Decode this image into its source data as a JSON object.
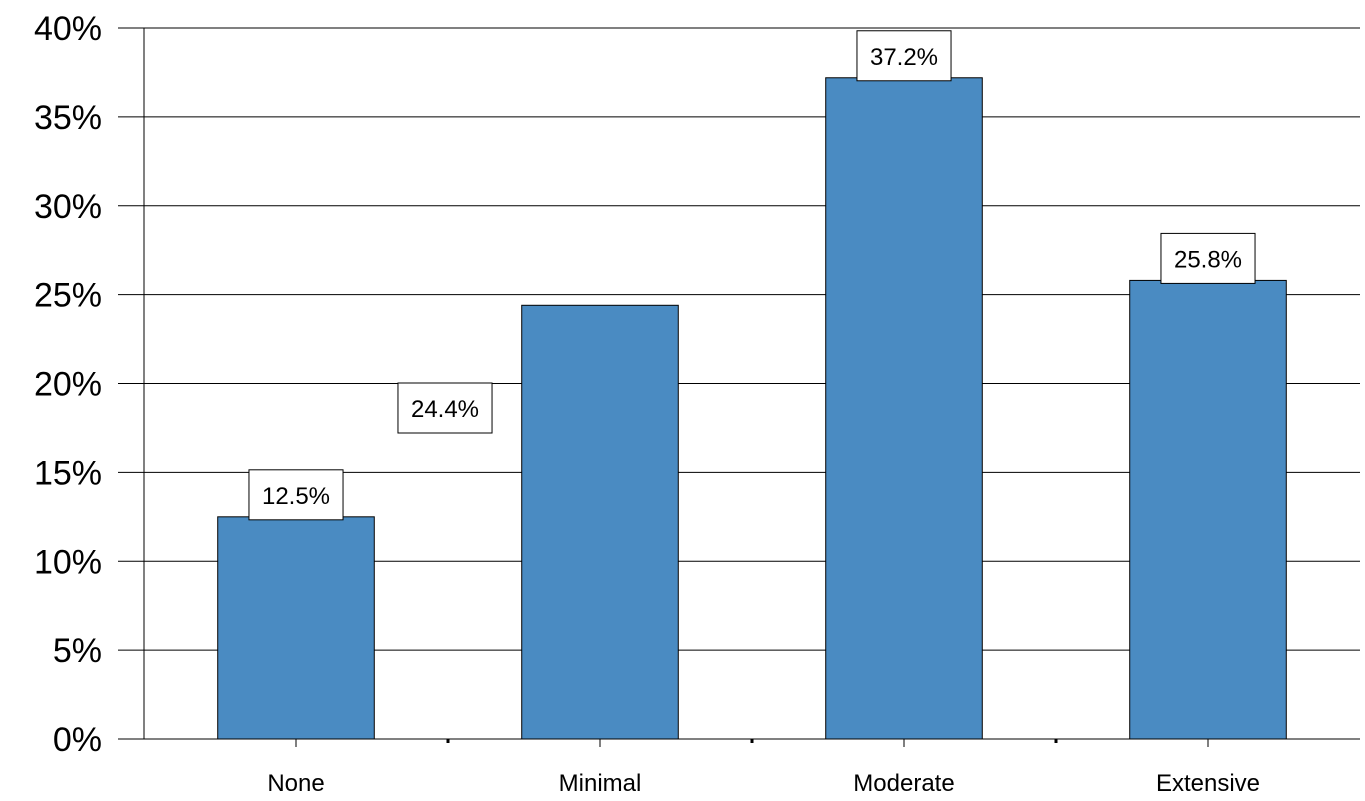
{
  "chart_data": {
    "type": "bar",
    "title": "",
    "xlabel": "",
    "ylabel": "",
    "categories": [
      "None",
      "Minimal",
      "Moderate",
      "Extensive"
    ],
    "values": [
      12.5,
      24.4,
      37.2,
      25.8
    ],
    "data_labels": [
      "12.5%",
      "24.4%",
      "37.2%",
      "25.8%"
    ],
    "ylim": [
      0,
      40
    ],
    "y_ticks": [
      0,
      5,
      10,
      15,
      20,
      25,
      30,
      35,
      40
    ],
    "y_tick_labels": [
      "0%",
      "5%",
      "10%",
      "15%",
      "20%",
      "25%",
      "30%",
      "35%",
      "40%"
    ],
    "grid": true,
    "legend": "none",
    "bar_color": "#4a8bc2"
  }
}
